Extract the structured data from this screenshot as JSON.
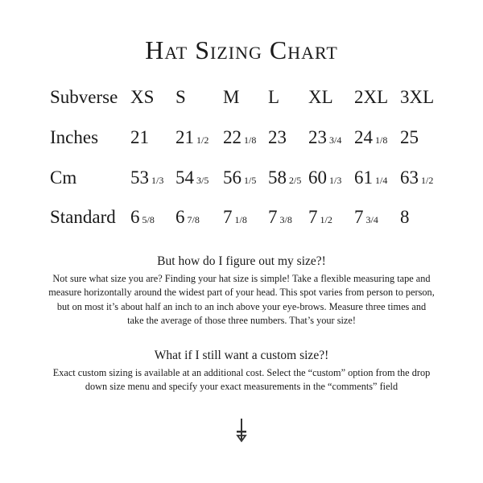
{
  "title": "Hat Sizing Chart",
  "table": {
    "rows": [
      {
        "label": "Subverse",
        "cells": [
          {
            "whole": "XS",
            "frac": ""
          },
          {
            "whole": "S",
            "frac": ""
          },
          {
            "whole": "M",
            "frac": ""
          },
          {
            "whole": "L",
            "frac": ""
          },
          {
            "whole": "XL",
            "frac": ""
          },
          {
            "whole": "2XL",
            "frac": ""
          },
          {
            "whole": "3XL",
            "frac": ""
          }
        ]
      },
      {
        "label": "Inches",
        "cells": [
          {
            "whole": "21",
            "frac": ""
          },
          {
            "whole": "21",
            "frac": "1/2"
          },
          {
            "whole": "22",
            "frac": "1/8"
          },
          {
            "whole": "23",
            "frac": ""
          },
          {
            "whole": "23",
            "frac": "3/4"
          },
          {
            "whole": "24",
            "frac": "1/8"
          },
          {
            "whole": "25",
            "frac": ""
          }
        ]
      },
      {
        "label": "Cm",
        "cells": [
          {
            "whole": "53",
            "frac": "1/3"
          },
          {
            "whole": "54",
            "frac": "3/5"
          },
          {
            "whole": "56",
            "frac": "1/5"
          },
          {
            "whole": "58",
            "frac": "2/5"
          },
          {
            "whole": "60",
            "frac": "1/3"
          },
          {
            "whole": "61",
            "frac": "1/4"
          },
          {
            "whole": "63",
            "frac": "1/2"
          }
        ]
      },
      {
        "label": "Standard",
        "cells": [
          {
            "whole": "6",
            "frac": "5/8"
          },
          {
            "whole": "6",
            "frac": "7/8"
          },
          {
            "whole": "7",
            "frac": "1/8"
          },
          {
            "whole": "7",
            "frac": "3/8"
          },
          {
            "whole": "7",
            "frac": "1/2"
          },
          {
            "whole": "7",
            "frac": "3/4"
          },
          {
            "whole": "8",
            "frac": ""
          }
        ]
      }
    ]
  },
  "section1": {
    "heading": "But how do I figure out my size?!",
    "body": "Not sure what size you are? Finding your hat size is simple! Take a flexible measuring tape and measure horizontally around the widest part of your head. This spot varies from person to person, but on most it’s about half an inch to an inch above your eye-brows. Measure three times and take the average of those three numbers. That’s your size!"
  },
  "section2": {
    "heading": "What if I still want a custom size?!",
    "body": "Exact custom sizing is available at an additional cost. Select the “custom” option from the drop down size menu and specify your exact measurements in the “comments” field"
  },
  "ornament_icon": "inverted-cross-icon"
}
